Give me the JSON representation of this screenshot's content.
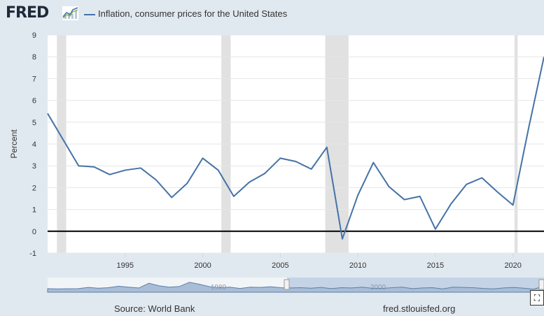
{
  "header": {
    "logo_text": "FRED",
    "logo_icon": "line-chart-icon",
    "series_legend": "Inflation, consumer prices for the United States"
  },
  "footer": {
    "source": "Source: World Bank",
    "site": "fred.stlouisfed.org"
  },
  "colors": {
    "series": "#4572a7",
    "background": "#e1e9f0",
    "plot": "#ffffff",
    "recession": "#e1e1e1"
  },
  "chart_data": {
    "type": "line",
    "ylabel": "Percent",
    "xlabel": "",
    "xlim": [
      1990,
      2022
    ],
    "ylim": [
      -1,
      9
    ],
    "grid": true,
    "legend_placement": "top-left",
    "xticks": [
      1995,
      2000,
      2005,
      2010,
      2015,
      2020
    ],
    "yticks": [
      -1,
      0,
      1,
      2,
      3,
      4,
      5,
      6,
      7,
      8,
      9
    ],
    "series": [
      {
        "name": "Inflation, consumer prices for the United States",
        "x": [
          1990,
          1991,
          1992,
          1993,
          1994,
          1995,
          1996,
          1997,
          1998,
          1999,
          2000,
          2001,
          2002,
          2003,
          2004,
          2005,
          2006,
          2007,
          2008,
          2009,
          2010,
          2011,
          2012,
          2013,
          2014,
          2015,
          2016,
          2017,
          2018,
          2019,
          2020,
          2021,
          2022
        ],
        "y": [
          5.4,
          4.2,
          3.0,
          2.95,
          2.6,
          2.8,
          2.9,
          2.35,
          1.55,
          2.2,
          3.35,
          2.8,
          1.6,
          2.25,
          2.65,
          3.35,
          3.2,
          2.85,
          3.85,
          -0.35,
          1.65,
          3.15,
          2.05,
          1.45,
          1.6,
          0.1,
          1.25,
          2.15,
          2.45,
          1.8,
          1.2,
          4.7,
          8.0
        ]
      }
    ],
    "recessions": [
      [
        1990.6,
        1991.2
      ],
      [
        2001.2,
        2001.8
      ],
      [
        2007.9,
        2009.4
      ],
      [
        2020.1,
        2020.3
      ]
    ],
    "navigator": {
      "ticks": [
        "1980",
        "2000"
      ]
    }
  }
}
